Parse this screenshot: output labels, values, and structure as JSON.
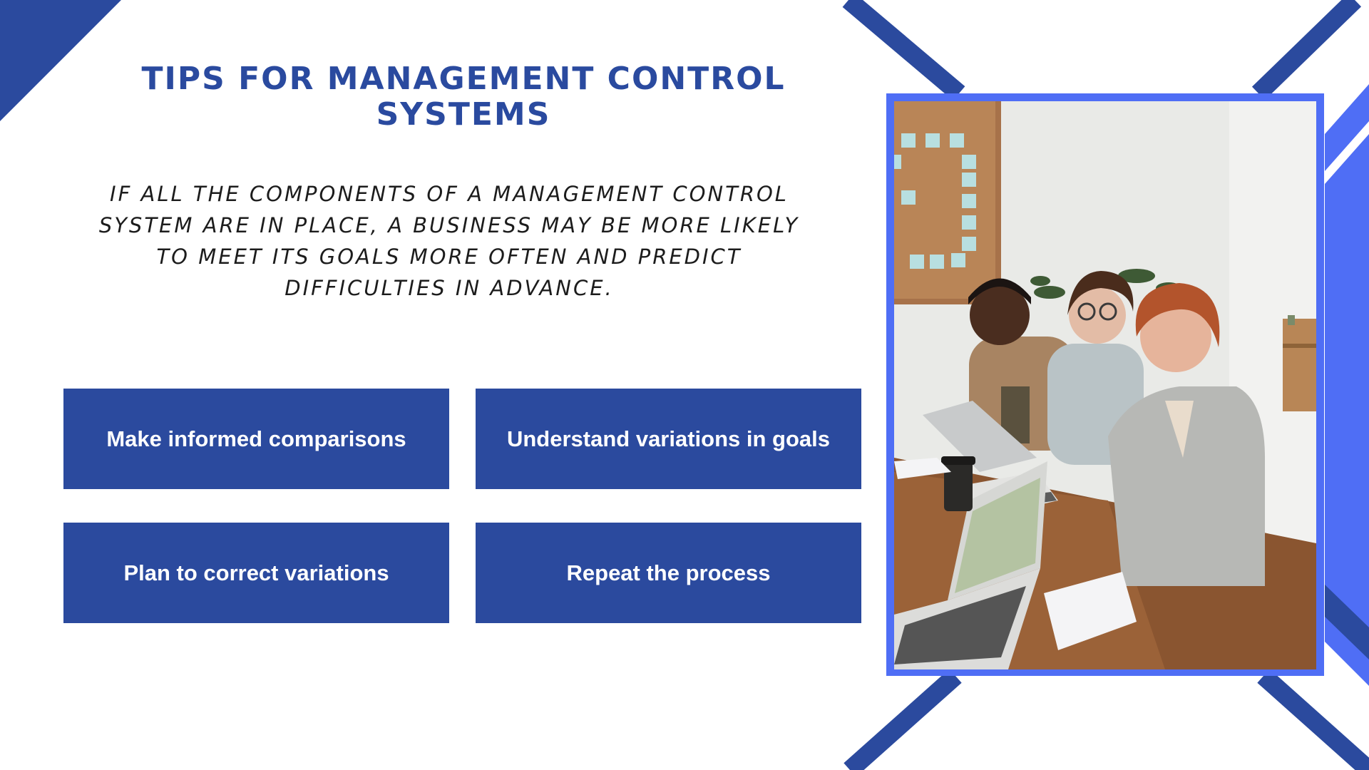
{
  "slide": {
    "title": "TIPS FOR MANAGEMENT CONTROL SYSTEMS",
    "body": "IF ALL THE COMPONENTS OF A MANAGEMENT CONTROL SYSTEM ARE IN PLACE, A BUSINESS MAY BE MORE LIKELY TO MEET ITS GOALS MORE OFTEN AND PREDICT DIFFICULTIES IN ADVANCE.",
    "tips": [
      "Make informed comparisons",
      "Understand variations in goals",
      "Plan to correct variations",
      "Repeat the process"
    ]
  },
  "colors": {
    "title": "#2a4a9f",
    "tile": "#2b4a9e",
    "frame": "#4f6ef5",
    "background": "#ffffff"
  }
}
